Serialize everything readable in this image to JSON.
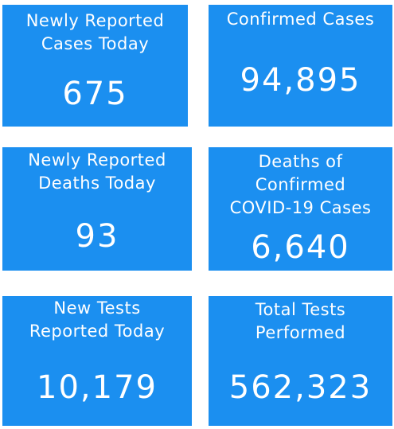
{
  "tiles": [
    {
      "label": "Newly Reported\nCases Today",
      "value": "675"
    },
    {
      "label": "Confirmed Cases",
      "value": "94,895"
    },
    {
      "label": "Newly Reported\nDeaths Today",
      "value": "93"
    },
    {
      "label": "Deaths of\nConfirmed\nCOVID-19 Cases",
      "value": "6,640"
    },
    {
      "label": "New Tests\nReported Today",
      "value": "10,179"
    },
    {
      "label": "Total Tests\nPerformed",
      "value": "562,323"
    }
  ],
  "colors": {
    "tile_background": "#1b8ff0",
    "text": "#ffffff"
  }
}
